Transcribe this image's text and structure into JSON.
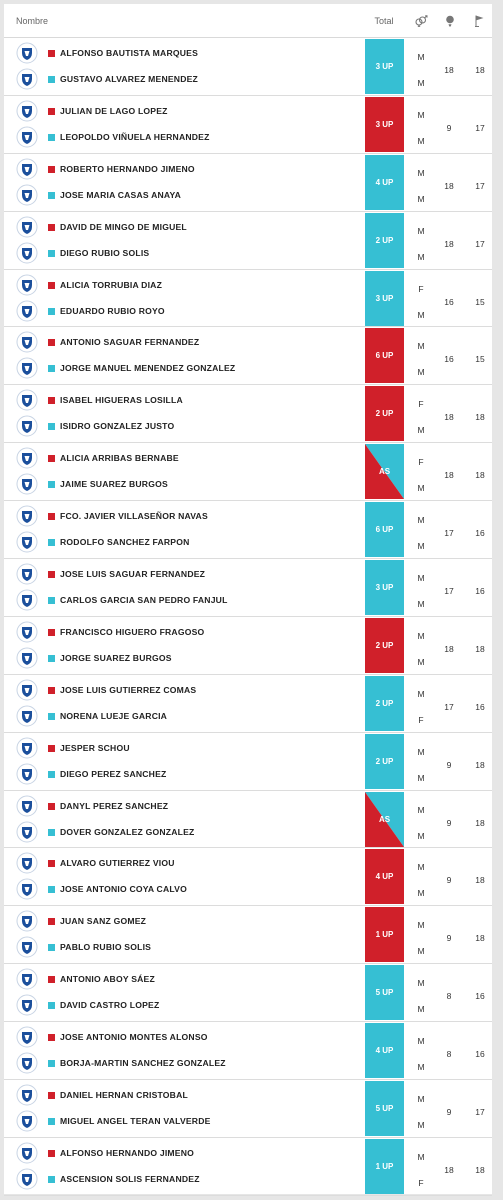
{
  "header": {
    "name_label": "Nombre",
    "total_label": "Total",
    "gender_icon": "gender-icon",
    "ball_icon": "golf-ball-icon",
    "flag_icon": "flag-icon"
  },
  "colors": {
    "team_red": "#d0202a",
    "team_blue": "#36bfd3"
  },
  "matches": [
    {
      "p1": "ALFONSO BAUTISTA MARQUES",
      "p2": "GUSTAVO ALVAREZ MENENDEZ",
      "total": "3 UP",
      "winner": "blue",
      "g1": "M",
      "g2": "M",
      "hcp": "18",
      "holes": "18"
    },
    {
      "p1": "JULIAN DE LAGO LOPEZ",
      "p2": "LEOPOLDO VIÑUELA HERNANDEZ",
      "total": "3 UP",
      "winner": "red",
      "g1": "M",
      "g2": "M",
      "hcp": "9",
      "holes": "17"
    },
    {
      "p1": "ROBERTO HERNANDO JIMENO",
      "p2": "JOSE MARIA CASAS ANAYA",
      "total": "4 UP",
      "winner": "blue",
      "g1": "M",
      "g2": "M",
      "hcp": "18",
      "holes": "17"
    },
    {
      "p1": "DAVID DE MINGO DE MIGUEL",
      "p2": "DIEGO RUBIO SOLIS",
      "total": "2 UP",
      "winner": "blue",
      "g1": "M",
      "g2": "M",
      "hcp": "18",
      "holes": "17"
    },
    {
      "p1": "ALICIA TORRUBIA DIAZ",
      "p2": "EDUARDO RUBIO ROYO",
      "total": "3 UP",
      "winner": "blue",
      "g1": "F",
      "g2": "M",
      "hcp": "16",
      "holes": "15"
    },
    {
      "p1": "ANTONIO SAGUAR FERNANDEZ",
      "p2": "JORGE MANUEL MENENDEZ GONZALEZ",
      "total": "6 UP",
      "winner": "red",
      "g1": "M",
      "g2": "M",
      "hcp": "16",
      "holes": "15"
    },
    {
      "p1": "ISABEL HIGUERAS LOSILLA",
      "p2": "ISIDRO GONZALEZ JUSTO",
      "total": "2 UP",
      "winner": "red",
      "g1": "F",
      "g2": "M",
      "hcp": "18",
      "holes": "18"
    },
    {
      "p1": "ALICIA ARRIBAS BERNABE",
      "p2": "JAIME SUAREZ BURGOS",
      "total": "AS",
      "winner": "split",
      "g1": "F",
      "g2": "M",
      "hcp": "18",
      "holes": "18"
    },
    {
      "p1": "FCO. JAVIER VILLASEÑOR NAVAS",
      "p2": "RODOLFO SANCHEZ FARPON",
      "total": "6 UP",
      "winner": "blue",
      "g1": "M",
      "g2": "M",
      "hcp": "17",
      "holes": "16"
    },
    {
      "p1": "JOSE LUIS SAGUAR FERNANDEZ",
      "p2": "CARLOS GARCIA SAN PEDRO FANJUL",
      "total": "3 UP",
      "winner": "blue",
      "g1": "M",
      "g2": "M",
      "hcp": "17",
      "holes": "16"
    },
    {
      "p1": "FRANCISCO HIGUERO FRAGOSO",
      "p2": "JORGE SUAREZ BURGOS",
      "total": "2 UP",
      "winner": "red",
      "g1": "M",
      "g2": "M",
      "hcp": "18",
      "holes": "18"
    },
    {
      "p1": "JOSE LUIS GUTIERREZ COMAS",
      "p2": "NORENA LUEJE GARCIA",
      "total": "2 UP",
      "winner": "blue",
      "g1": "M",
      "g2": "F",
      "hcp": "17",
      "holes": "16"
    },
    {
      "p1": "JESPER SCHOU",
      "p2": "DIEGO PEREZ SANCHEZ",
      "total": "2 UP",
      "winner": "blue",
      "g1": "M",
      "g2": "M",
      "hcp": "9",
      "holes": "18"
    },
    {
      "p1": "DANYL PEREZ SANCHEZ",
      "p2": "DOVER GONZALEZ GONZALEZ",
      "total": "AS",
      "winner": "split",
      "g1": "M",
      "g2": "M",
      "hcp": "9",
      "holes": "18"
    },
    {
      "p1": "ALVARO GUTIERREZ VIOU",
      "p2": "JOSE ANTONIO COYA CALVO",
      "total": "4 UP",
      "winner": "red",
      "g1": "M",
      "g2": "M",
      "hcp": "9",
      "holes": "18"
    },
    {
      "p1": "JUAN SANZ GOMEZ",
      "p2": "PABLO RUBIO SOLIS",
      "total": "1 UP",
      "winner": "red",
      "g1": "M",
      "g2": "M",
      "hcp": "9",
      "holes": "18"
    },
    {
      "p1": "ANTONIO ABOY SÁEZ",
      "p2": "DAVID CASTRO LOPEZ",
      "total": "5 UP",
      "winner": "blue",
      "g1": "M",
      "g2": "M",
      "hcp": "8",
      "holes": "16"
    },
    {
      "p1": "JOSE ANTONIO MONTES ALONSO",
      "p2": "BORJA-MARTIN SANCHEZ GONZALEZ",
      "total": "4 UP",
      "winner": "blue",
      "g1": "M",
      "g2": "M",
      "hcp": "8",
      "holes": "16"
    },
    {
      "p1": "DANIEL HERNAN CRISTOBAL",
      "p2": "MIGUEL ANGEL TERAN VALVERDE",
      "total": "5 UP",
      "winner": "blue",
      "g1": "M",
      "g2": "M",
      "hcp": "9",
      "holes": "17"
    },
    {
      "p1": "ALFONSO HERNANDO JIMENO",
      "p2": "ASCENSION SOLIS FERNANDEZ",
      "total": "1 UP",
      "winner": "blue",
      "g1": "M",
      "g2": "F",
      "hcp": "18",
      "holes": "18"
    }
  ]
}
